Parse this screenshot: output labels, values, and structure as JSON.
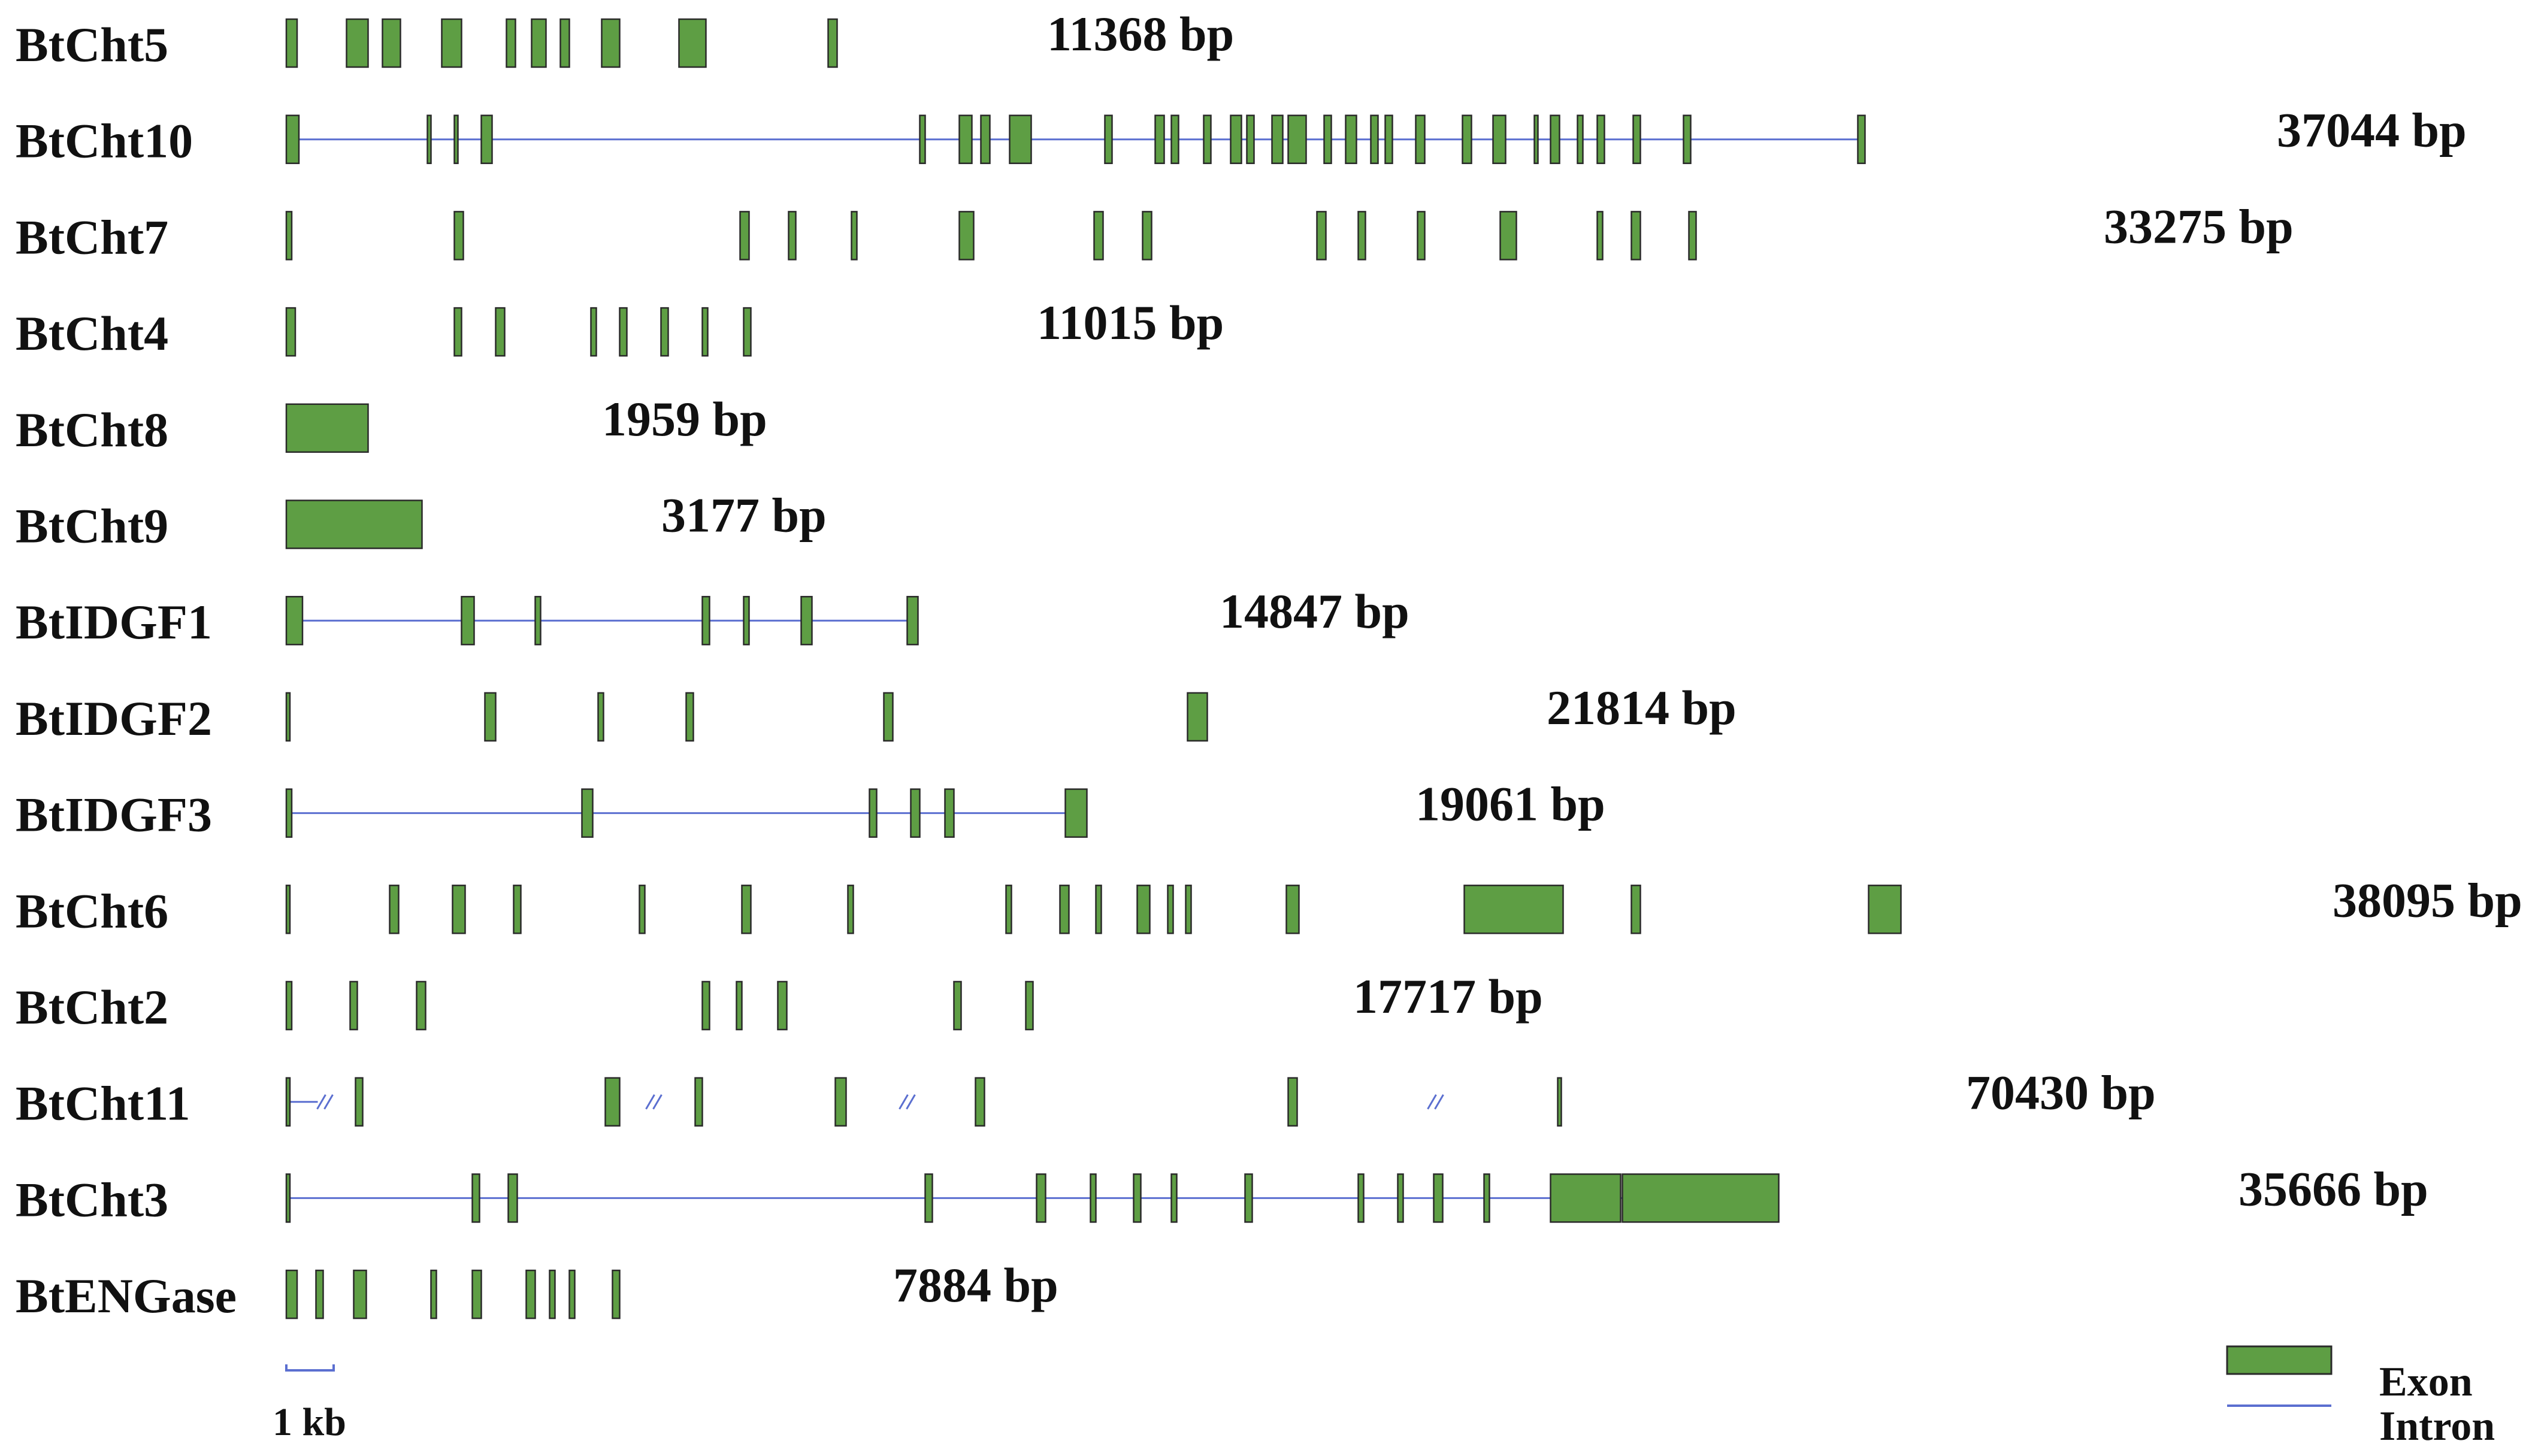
{
  "colors": {
    "exon_fill": "#5e9e44",
    "exon_stroke": "#2a2a2a",
    "intron": "#5b6fd0",
    "text": "#111111"
  },
  "genes": [
    {
      "name": "BtCht5",
      "size_label": "11368 bp",
      "intron_line": false,
      "exons": [
        [
          0.0,
          0.006
        ],
        [
          0.0335,
          0.0455
        ],
        [
          0.0535,
          0.0635
        ],
        [
          0.0865,
          0.0975
        ],
        [
          0.1225,
          0.1275
        ],
        [
          0.1365,
          0.1445
        ],
        [
          0.1525,
          0.1575
        ],
        [
          0.1755,
          0.1855
        ],
        [
          0.2185,
          0.2335
        ],
        [
          0.3015,
          0.3065
        ]
      ]
    },
    {
      "name": "BtCht10",
      "size_label": "37044 bp",
      "intron_line": true,
      "exons": [
        [
          0.0,
          0.007
        ],
        [
          0.0785,
          0.0805
        ],
        [
          0.0935,
          0.0955
        ],
        [
          0.1085,
          0.1145
        ],
        [
          0.3525,
          0.3555
        ],
        [
          0.3745,
          0.3815
        ],
        [
          0.3865,
          0.3915
        ],
        [
          0.4025,
          0.4145
        ],
        [
          0.4555,
          0.4595
        ],
        [
          0.4835,
          0.4885
        ],
        [
          0.4925,
          0.4965
        ],
        [
          0.5105,
          0.5145
        ],
        [
          0.5255,
          0.5315
        ],
        [
          0.5345,
          0.5385
        ],
        [
          0.5485,
          0.5545
        ],
        [
          0.5575,
          0.5675
        ],
        [
          0.5775,
          0.5815
        ],
        [
          0.5895,
          0.5955
        ],
        [
          0.6035,
          0.6075
        ],
        [
          0.6115,
          0.6155
        ],
        [
          0.6285,
          0.6335
        ],
        [
          0.6545,
          0.6595
        ],
        [
          0.6715,
          0.6785
        ],
        [
          0.6945,
          0.6965
        ],
        [
          0.7035,
          0.7085
        ],
        [
          0.7185,
          0.7215
        ],
        [
          0.7295,
          0.7335
        ],
        [
          0.7495,
          0.7535
        ],
        [
          0.7775,
          0.7815
        ],
        [
          0.8745,
          0.8785
        ]
      ]
    },
    {
      "name": "BtCht7",
      "size_label": "33275 bp",
      "intron_line": false,
      "exons": [
        [
          0.0,
          0.003
        ],
        [
          0.0935,
          0.0985
        ],
        [
          0.2525,
          0.2575
        ],
        [
          0.2795,
          0.2835
        ],
        [
          0.3145,
          0.3175
        ],
        [
          0.3745,
          0.3825
        ],
        [
          0.4495,
          0.4545
        ],
        [
          0.4765,
          0.4815
        ],
        [
          0.5735,
          0.5785
        ],
        [
          0.5965,
          0.6005
        ],
        [
          0.6295,
          0.6335
        ],
        [
          0.6755,
          0.6845
        ],
        [
          0.7295,
          0.7325
        ],
        [
          0.7485,
          0.7535
        ],
        [
          0.7805,
          0.7845
        ]
      ]
    },
    {
      "name": "BtCht4",
      "size_label": "11015 bp",
      "intron_line": false,
      "exons": [
        [
          0.0,
          0.005
        ],
        [
          0.0935,
          0.0975
        ],
        [
          0.1165,
          0.1215
        ],
        [
          0.1695,
          0.1725
        ],
        [
          0.1855,
          0.1895
        ],
        [
          0.2085,
          0.2125
        ],
        [
          0.2315,
          0.2345
        ],
        [
          0.2545,
          0.2585
        ]
      ]
    },
    {
      "name": "BtCht8",
      "size_label": "1959 bp",
      "intron_line": false,
      "exons": [
        [
          0.0,
          0.0455
        ]
      ]
    },
    {
      "name": "BtCht9",
      "size_label": "3177 bp",
      "intron_line": false,
      "exons": [
        [
          0.0,
          0.0755
        ]
      ]
    },
    {
      "name": "BtIDGF1",
      "size_label": "14847 bp",
      "intron_line": true,
      "exons": [
        [
          0.0,
          0.009
        ],
        [
          0.0975,
          0.1045
        ],
        [
          0.1385,
          0.1415
        ],
        [
          0.2315,
          0.2355
        ],
        [
          0.2545,
          0.2575
        ],
        [
          0.2865,
          0.2925
        ],
        [
          0.3455,
          0.3515
        ]
      ]
    },
    {
      "name": "BtIDGF2",
      "size_label": "21814 bp",
      "intron_line": false,
      "exons": [
        [
          0.0,
          0.002
        ],
        [
          0.1105,
          0.1165
        ],
        [
          0.1735,
          0.1765
        ],
        [
          0.2225,
          0.2265
        ],
        [
          0.3325,
          0.3375
        ],
        [
          0.5015,
          0.5125
        ]
      ]
    },
    {
      "name": "BtIDGF3",
      "size_label": "19061 bp",
      "intron_line": true,
      "exons": [
        [
          0.0,
          0.003
        ],
        [
          0.1645,
          0.1705
        ],
        [
          0.3245,
          0.3285
        ],
        [
          0.3475,
          0.3525
        ],
        [
          0.3665,
          0.3715
        ],
        [
          0.4335,
          0.4455
        ]
      ]
    },
    {
      "name": "BtCht6",
      "size_label": "38095 bp",
      "intron_line": false,
      "exons": [
        [
          0.0,
          0.002
        ],
        [
          0.0575,
          0.0625
        ],
        [
          0.0925,
          0.0995
        ],
        [
          0.1265,
          0.1305
        ],
        [
          0.1965,
          0.1995
        ],
        [
          0.2535,
          0.2585
        ],
        [
          0.3125,
          0.3155
        ],
        [
          0.4005,
          0.4035
        ],
        [
          0.4305,
          0.4355
        ],
        [
          0.4505,
          0.4535
        ],
        [
          0.4735,
          0.4805
        ],
        [
          0.4905,
          0.4935
        ],
        [
          0.5005,
          0.5035
        ],
        [
          0.5565,
          0.5635
        ],
        [
          0.6555,
          0.7105
        ],
        [
          0.7485,
          0.7535
        ],
        [
          0.8805,
          0.8985
        ]
      ]
    },
    {
      "name": "BtCht2",
      "size_label": "17717 bp",
      "intron_line": false,
      "exons": [
        [
          0.0,
          0.003
        ],
        [
          0.0355,
          0.0395
        ],
        [
          0.0725,
          0.0775
        ],
        [
          0.2315,
          0.2355
        ],
        [
          0.2505,
          0.2535
        ],
        [
          0.2735,
          0.2785
        ],
        [
          0.3715,
          0.3755
        ],
        [
          0.4115,
          0.4155
        ]
      ]
    },
    {
      "name": "BtCht11",
      "size_label": "70430 bp",
      "intron_line": false,
      "breaks": [
        0.0215,
        0.2045,
        0.3455,
        0.6395
      ],
      "exons": [
        [
          0.0,
          0.002
        ],
        [
          0.0385,
          0.0425
        ],
        [
          0.1775,
          0.1855
        ],
        [
          0.2275,
          0.2315
        ],
        [
          0.3055,
          0.3115
        ],
        [
          0.3835,
          0.3885
        ],
        [
          0.5575,
          0.5625
        ],
        [
          0.7075,
          0.7095
        ]
      ]
    },
    {
      "name": "BtCht3",
      "size_label": "35666 bp",
      "intron_line": true,
      "exons": [
        [
          0.0,
          0.002
        ],
        [
          0.1035,
          0.1075
        ],
        [
          0.1235,
          0.1285
        ],
        [
          0.3555,
          0.3595
        ],
        [
          0.4175,
          0.4225
        ],
        [
          0.4475,
          0.4505
        ],
        [
          0.4715,
          0.4755
        ],
        [
          0.4925,
          0.4955
        ],
        [
          0.5335,
          0.5375
        ],
        [
          0.5965,
          0.5995
        ],
        [
          0.6185,
          0.6215
        ],
        [
          0.6385,
          0.6435
        ],
        [
          0.6665,
          0.6695
        ],
        [
          0.7035,
          0.7425
        ],
        [
          0.7435,
          0.8305
        ]
      ]
    },
    {
      "name": "BtENGase",
      "size_label": "7884 bp",
      "intron_line": false,
      "exons": [
        [
          0.0,
          0.006
        ],
        [
          0.0165,
          0.0205
        ],
        [
          0.0375,
          0.0445
        ],
        [
          0.0805,
          0.0835
        ],
        [
          0.1035,
          0.1085
        ],
        [
          0.1335,
          0.1385
        ],
        [
          0.1465,
          0.1495
        ],
        [
          0.1575,
          0.1605
        ],
        [
          0.1815,
          0.1855
        ]
      ]
    }
  ],
  "scale_bar": {
    "label": "1 kb"
  },
  "legend": {
    "exon_label": "Exon",
    "intron_label": "Intron"
  }
}
